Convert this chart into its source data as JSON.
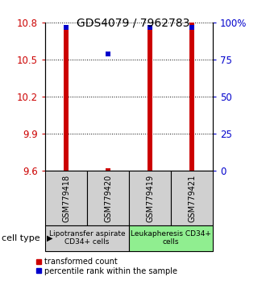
{
  "title": "GDS4079 / 7962783",
  "samples": [
    "GSM779418",
    "GSM779420",
    "GSM779419",
    "GSM779421"
  ],
  "red_values": [
    10.755,
    9.625,
    10.755,
    10.8
  ],
  "blue_values": [
    97,
    79,
    97,
    97
  ],
  "ylim_left": [
    9.6,
    10.8
  ],
  "ylim_right": [
    0,
    100
  ],
  "left_ticks": [
    9.6,
    9.9,
    10.2,
    10.5,
    10.8
  ],
  "right_ticks": [
    0,
    25,
    50,
    75,
    100
  ],
  "right_tick_labels": [
    "0",
    "25",
    "50",
    "75",
    "100%"
  ],
  "bar_color": "#cc0000",
  "blue_color": "#0000cc",
  "groups": [
    {
      "label": "Lipotransfer aspirate\nCD34+ cells",
      "samples": [
        0,
        1
      ],
      "color": "#d0d0d0"
    },
    {
      "label": "Leukapheresis CD34+\ncells",
      "samples": [
        2,
        3
      ],
      "color": "#90ee90"
    }
  ],
  "cell_type_label": "cell type",
  "legend_red": "transformed count",
  "legend_blue": "percentile rank within the sample",
  "left_tick_color": "#cc0000",
  "right_tick_color": "#0000cc",
  "title_fontsize": 10,
  "bar_width": 0.12
}
